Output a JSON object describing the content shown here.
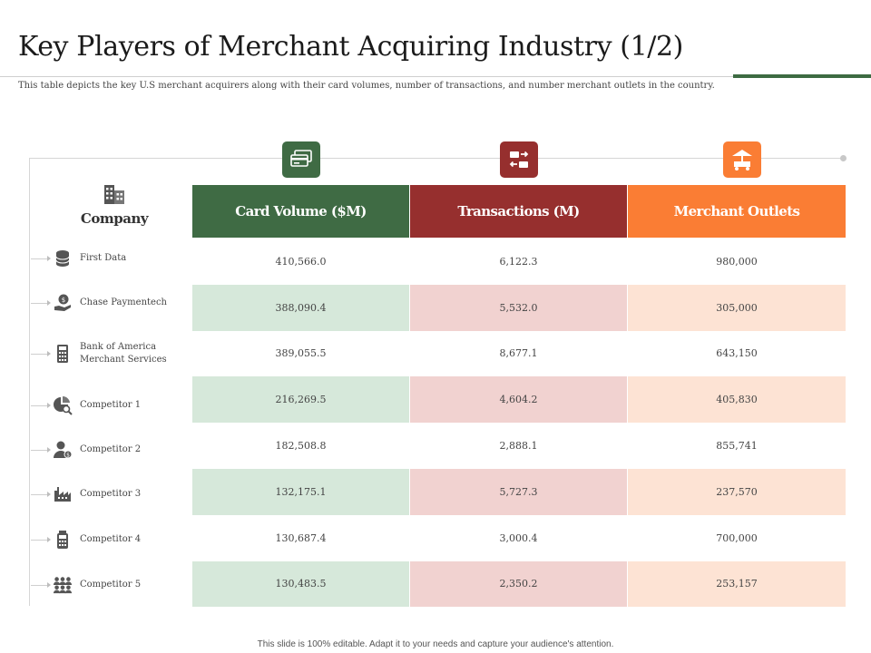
{
  "title": "Key Players of Merchant Acquiring Industry (1/2)",
  "subtitle": "This table depicts the key U.S merchant acquirers along with their card volumes, number of transactions, and number merchant outlets in the country.",
  "colors": {
    "green": "#3f6b44",
    "red": "#962f2e",
    "orange": "#fa7d34",
    "green_tint": "#d6e8da",
    "red_tint": "#f1d2d0",
    "orange_tint": "#fde3d4"
  },
  "table": {
    "company_header": "Company",
    "company_icon": "office-building-icon",
    "columns": [
      {
        "label": "Card Volume ($M)",
        "icon": "credit-cards-icon"
      },
      {
        "label": "Transactions (M)",
        "icon": "exchange-arrows-icon"
      },
      {
        "label": "Merchant Outlets",
        "icon": "market-stall-icon"
      }
    ],
    "rows": [
      {
        "company": "First Data",
        "icon": "database-icon",
        "card_volume": "410,566.0",
        "transactions": "6,122.3",
        "outlets": "980,000"
      },
      {
        "company": "Chase Paymentech",
        "icon": "hand-coin-icon",
        "card_volume": "388,090.4",
        "transactions": "5,532.0",
        "outlets": "305,000"
      },
      {
        "company": "Bank of America\nMerchant Services",
        "icon": "calculator-icon",
        "card_volume": "389,055.5",
        "transactions": "8,677.1",
        "outlets": "643,150"
      },
      {
        "company": "Competitor 1",
        "icon": "pie-search-icon",
        "card_volume": "216,269.5",
        "transactions": "4,604.2",
        "outlets": "405,830"
      },
      {
        "company": "Competitor 2",
        "icon": "user-dollar-icon",
        "card_volume": "182,508.8",
        "transactions": "2,888.1",
        "outlets": "855,741"
      },
      {
        "company": "Competitor 3",
        "icon": "factory-icon",
        "card_volume": "132,175.1",
        "transactions": "5,727.3",
        "outlets": "237,570"
      },
      {
        "company": "Competitor 4",
        "icon": "pos-terminal-icon",
        "card_volume": "130,687.4",
        "transactions": "3,000.4",
        "outlets": "700,000"
      },
      {
        "company": "Competitor 5",
        "icon": "team-icon",
        "card_volume": "130,483.5",
        "transactions": "2,350.2",
        "outlets": "253,157"
      }
    ]
  },
  "footer": "This slide is 100% editable. Adapt it to your needs and capture your audience's attention."
}
